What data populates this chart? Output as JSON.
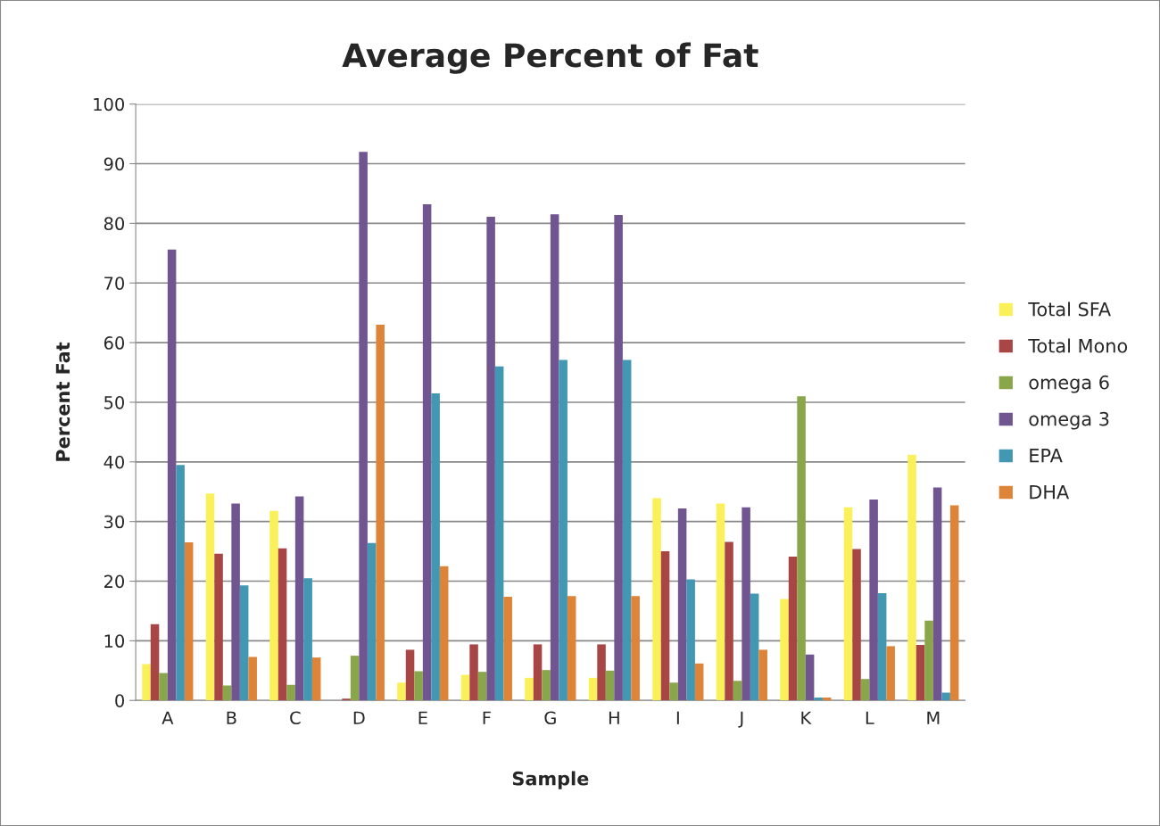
{
  "chart_data": {
    "type": "bar",
    "title": "Average Percent of Fat",
    "xlabel": "Sample",
    "ylabel": "Percent Fat",
    "categories": [
      "A",
      "B",
      "C",
      "D",
      "E",
      "F",
      "G",
      "H",
      "I",
      "J",
      "K",
      "L",
      "M"
    ],
    "series": [
      {
        "name": "Total SFA",
        "color": "#faf05a",
        "values": [
          6.1,
          34.7,
          31.8,
          0,
          3.0,
          4.3,
          3.8,
          3.8,
          33.9,
          33.0,
          17.0,
          32.4,
          41.2
        ]
      },
      {
        "name": "Total Mono",
        "color": "#a84646",
        "values": [
          12.8,
          24.6,
          25.5,
          0.3,
          8.5,
          9.4,
          9.4,
          9.4,
          25.0,
          26.6,
          24.1,
          25.4,
          9.3
        ]
      },
      {
        "name": "omega 6",
        "color": "#8aa64a",
        "values": [
          4.6,
          2.5,
          2.6,
          7.5,
          4.9,
          4.8,
          5.1,
          5.0,
          3.0,
          3.3,
          51.0,
          3.6,
          13.4
        ]
      },
      {
        "name": "omega 3",
        "color": "#705590",
        "values": [
          75.6,
          33.0,
          34.2,
          92.0,
          83.2,
          81.1,
          81.5,
          81.4,
          32.2,
          32.4,
          7.7,
          33.7,
          35.7
        ]
      },
      {
        "name": "EPA",
        "color": "#4298b2",
        "values": [
          39.5,
          19.3,
          20.5,
          26.4,
          51.5,
          56.0,
          57.1,
          57.1,
          20.3,
          17.9,
          0.5,
          18.0,
          1.3
        ]
      },
      {
        "name": "DHA",
        "color": "#dd8438",
        "values": [
          26.5,
          7.3,
          7.2,
          63.0,
          22.5,
          17.4,
          17.5,
          17.5,
          6.2,
          8.5,
          0.5,
          9.1,
          32.7
        ]
      }
    ],
    "ylim": [
      0,
      100
    ],
    "yticks": [
      0,
      10,
      20,
      30,
      40,
      50,
      60,
      70,
      80,
      90,
      100
    ],
    "grid": "y",
    "legend": "right"
  }
}
